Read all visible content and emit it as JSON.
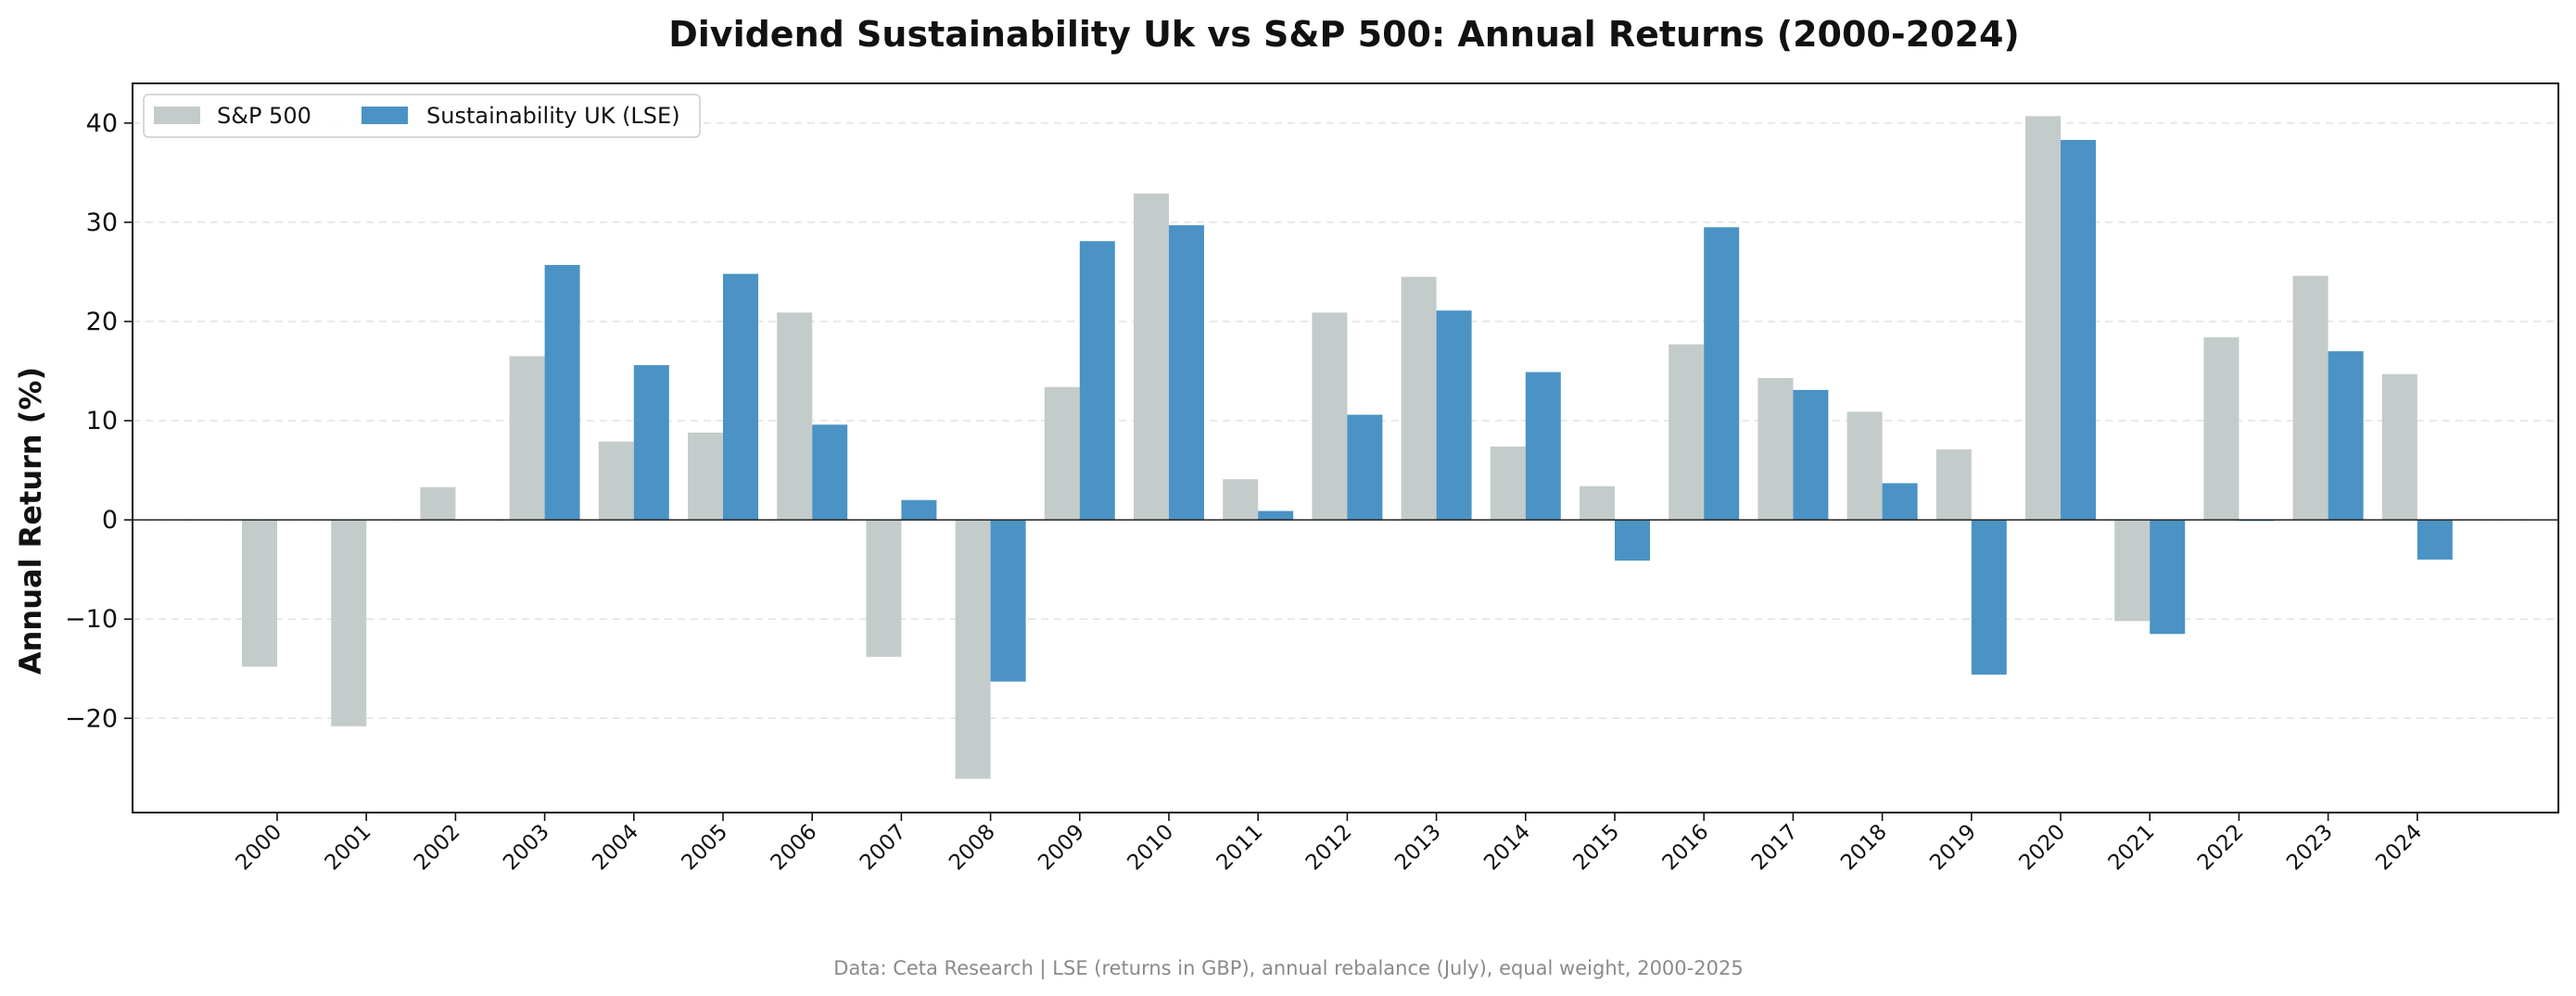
{
  "chart_data": {
    "type": "bar",
    "title": "Dividend Sustainability Uk vs S&P 500: Annual Returns (2000-2024)",
    "xlabel": "",
    "ylabel": "Annual Return (%)",
    "ylim": [
      -29.5,
      44
    ],
    "yticks": [
      -20,
      -10,
      0,
      10,
      20,
      30,
      40
    ],
    "grid": true,
    "legend_position": "top-left",
    "categories": [
      "2000",
      "2001",
      "2002",
      "2003",
      "2004",
      "2005",
      "2006",
      "2007",
      "2008",
      "2009",
      "2010",
      "2011",
      "2012",
      "2013",
      "2014",
      "2015",
      "2016",
      "2017",
      "2018",
      "2019",
      "2020",
      "2021",
      "2022",
      "2023",
      "2024"
    ],
    "series": [
      {
        "name": "S&P 500",
        "color": "#c4cbcb",
        "values": [
          -14.8,
          -20.8,
          3.3,
          16.5,
          7.9,
          8.8,
          20.9,
          -13.8,
          -26.1,
          13.4,
          32.9,
          4.1,
          20.9,
          24.5,
          7.4,
          3.4,
          17.7,
          14.3,
          10.9,
          7.1,
          40.7,
          -10.2,
          18.4,
          24.6,
          14.7
        ]
      },
      {
        "name": "Sustainability UK (LSE)",
        "color": "#4a93c4",
        "values": [
          null,
          null,
          null,
          25.7,
          15.6,
          24.8,
          9.6,
          2.0,
          -16.3,
          28.1,
          29.7,
          0.9,
          10.6,
          21.1,
          14.9,
          -4.1,
          29.5,
          13.1,
          3.7,
          -15.6,
          38.3,
          -11.5,
          -0.1,
          17.0,
          -4.0
        ]
      }
    ],
    "footer": "Data: Ceta Research | LSE (returns in GBP), annual rebalance (July), equal weight, 2000-2025"
  }
}
